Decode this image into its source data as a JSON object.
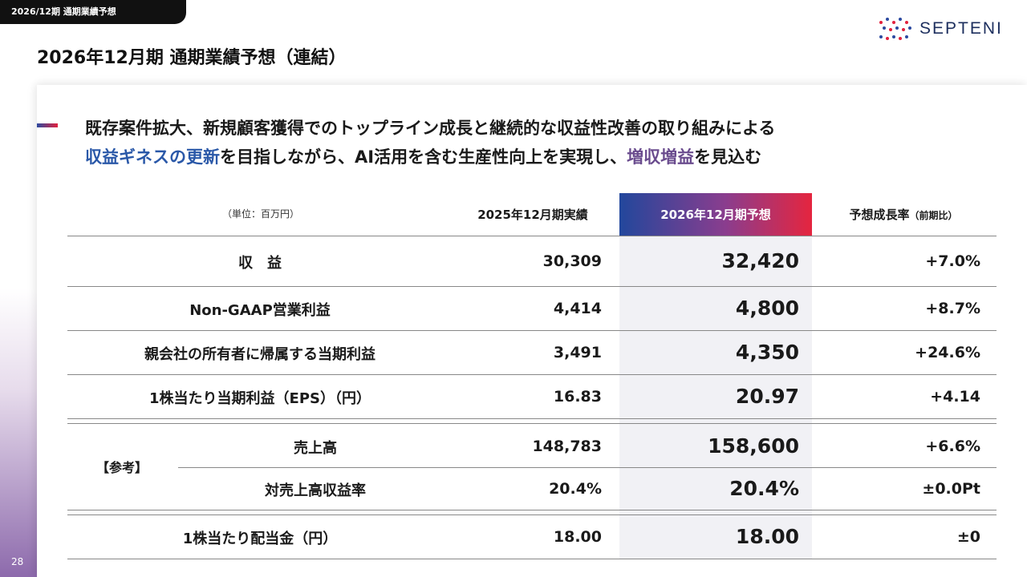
{
  "header": {
    "tag": "2026/12期 通期業績予想",
    "title": "2026年12月期 通期業績予想（連結）",
    "logo_text": "SEPTENI",
    "page_number": "28"
  },
  "message": {
    "line1": "既存案件拡大、新規顧客獲得でのトップライン成長と継続的な収益性改善の取り組みによる",
    "line2_hl1": "収益ギネスの更新",
    "line2_mid": "を目指しながら、AI活用を含む生産性向上を実現し、",
    "line2_hl2": "増収増益",
    "line2_end": "を見込む"
  },
  "table": {
    "unit": "（単位：百万円）",
    "col_prev": "2025年12月期実績",
    "col_fcst": "2026年12月期予想",
    "col_growth": "予想成長率",
    "col_growth_note": "（前期比）",
    "rows": [
      {
        "label": "収　益",
        "prev": "30,309",
        "fcst": "32,420",
        "growth": "+7.0%"
      },
      {
        "label": "Non-GAAP営業利益",
        "prev": "4,414",
        "fcst": "4,800",
        "growth": "+8.7%"
      },
      {
        "label": "親会社の所有者に帰属する当期利益",
        "prev": "3,491",
        "fcst": "4,350",
        "growth": "+24.6%"
      },
      {
        "label": "1株当たり当期利益（EPS）（円）",
        "prev": "16.83",
        "fcst": "20.97",
        "growth": "+4.14"
      }
    ],
    "ref_label": "【参考】",
    "ref_rows": [
      {
        "label": "売上高",
        "prev": "148,783",
        "fcst": "158,600",
        "growth": "+6.6%"
      },
      {
        "label": "対売上高収益率",
        "prev": "20.4%",
        "fcst": "20.4%",
        "growth": "±0.0Pt"
      }
    ],
    "dividend": {
      "label": "1株当たり配当金（円）",
      "prev": "18.00",
      "fcst": "18.00",
      "growth": "±0"
    }
  }
}
